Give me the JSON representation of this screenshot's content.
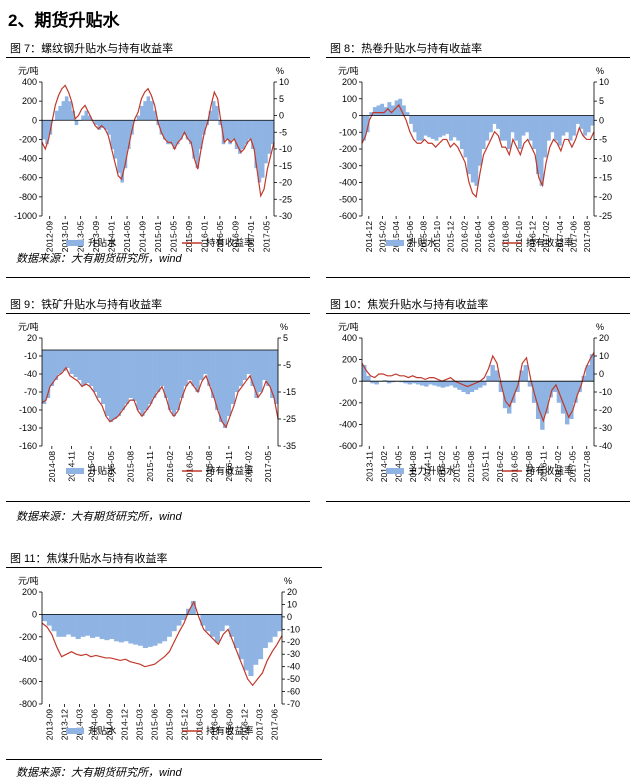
{
  "section_title": "2、期货升贴水",
  "source_note": "数据来源：大有期货研究所，wind",
  "chart_data": [
    {
      "type": "bar+line",
      "title": "图 7：螺纹钢升贴水与持有收益率",
      "left_unit": "元/吨",
      "right_unit": "%",
      "left_ylim": [
        -1000,
        400
      ],
      "left_ticks": [
        400,
        200,
        0,
        -200,
        -400,
        -600,
        -800,
        -1000
      ],
      "right_ylim": [
        -30,
        10
      ],
      "right_ticks": [
        10,
        5,
        0,
        -5,
        -10,
        -15,
        -20,
        -25,
        -30
      ],
      "x_ticks": [
        "2012-09",
        "2013-01",
        "2013-05",
        "2013-09",
        "2014-01",
        "2014-05",
        "2014-09",
        "2015-01",
        "2015-05",
        "2015-09",
        "2016-01",
        "2016-05",
        "2016-09",
        "2017-01",
        "2017-05"
      ],
      "grid": false,
      "legend_position": "bottom",
      "series": [
        {
          "name": "升贴水",
          "kind": "bar",
          "axis": "left",
          "color": "#8fb4e3",
          "values": [
            -200,
            -250,
            -150,
            0,
            100,
            150,
            200,
            250,
            200,
            100,
            -50,
            0,
            50,
            100,
            50,
            0,
            -50,
            -100,
            -80,
            -100,
            -150,
            -300,
            -400,
            -550,
            -650,
            -500,
            -300,
            -150,
            0,
            50,
            150,
            200,
            250,
            200,
            100,
            -50,
            -150,
            -200,
            -250,
            -250,
            -300,
            -250,
            -200,
            -150,
            -200,
            -250,
            -400,
            -500,
            -300,
            -150,
            -50,
            100,
            200,
            150,
            -50,
            -250,
            -200,
            -250,
            -200,
            -300,
            -350,
            -300,
            -250,
            -200,
            -300,
            -500,
            -650,
            -600,
            -450,
            -350,
            -250
          ]
        },
        {
          "name": "持有收益率",
          "kind": "line",
          "axis": "right",
          "color": "#c0392b",
          "values": [
            -8,
            -10,
            -7,
            -2,
            3,
            6,
            8,
            9,
            7,
            4,
            -1,
            0,
            2,
            3,
            1,
            -1,
            -3,
            -4,
            -3,
            -4,
            -6,
            -10,
            -14,
            -18,
            -19,
            -15,
            -10,
            -5,
            -1,
            1,
            5,
            7,
            8,
            6,
            3,
            -2,
            -5,
            -7,
            -8,
            -8,
            -10,
            -8,
            -7,
            -5,
            -7,
            -8,
            -13,
            -16,
            -10,
            -5,
            -2,
            3,
            7,
            5,
            -2,
            -8,
            -7,
            -8,
            -7,
            -9,
            -11,
            -10,
            -8,
            -7,
            -10,
            -17,
            -24,
            -22,
            -16,
            -12,
            -8
          ]
        }
      ]
    },
    {
      "type": "bar+line",
      "title": "图 8：热卷升贴水与持有收益率",
      "left_unit": "元/吨",
      "right_unit": "%",
      "left_ylim": [
        -600,
        200
      ],
      "left_ticks": [
        200,
        100,
        0,
        -100,
        -200,
        -300,
        -400,
        -500,
        -600
      ],
      "right_ylim": [
        -25,
        10
      ],
      "right_ticks": [
        10,
        5,
        0,
        -5,
        -10,
        -15,
        -20,
        -25
      ],
      "x_ticks": [
        "2014-12",
        "2015-02",
        "2015-04",
        "2015-06",
        "2015-08",
        "2015-10",
        "2015-12",
        "2016-02",
        "2016-04",
        "2016-06",
        "2016-08",
        "2016-10",
        "2016-12",
        "2017-02",
        "2017-04",
        "2017-06",
        "2017-08"
      ],
      "grid": false,
      "legend_position": "bottom",
      "series": [
        {
          "name": "升贴水",
          "kind": "bar",
          "axis": "left",
          "color": "#8fb4e3",
          "values": [
            -150,
            -100,
            20,
            50,
            60,
            70,
            50,
            80,
            60,
            90,
            100,
            60,
            20,
            -50,
            -100,
            -150,
            -150,
            -120,
            -130,
            -140,
            -150,
            -130,
            -120,
            -110,
            -150,
            -130,
            -150,
            -200,
            -250,
            -350,
            -400,
            -420,
            -300,
            -200,
            -150,
            -100,
            -50,
            -80,
            -150,
            -150,
            -200,
            -100,
            -150,
            -200,
            -120,
            -100,
            -150,
            -200,
            -350,
            -420,
            -250,
            -150,
            -100,
            -150,
            -180,
            -120,
            -100,
            -150,
            -120,
            -50,
            -80,
            -120,
            -100,
            -60
          ]
        },
        {
          "name": "持有收益率",
          "kind": "line",
          "axis": "right",
          "color": "#c0392b",
          "values": [
            -6,
            -4,
            0,
            2,
            2,
            2,
            2,
            3,
            2,
            3,
            4,
            2,
            0,
            -3,
            -5,
            -6,
            -6,
            -5,
            -6,
            -6,
            -7,
            -6,
            -5,
            -5,
            -7,
            -6,
            -7,
            -9,
            -11,
            -16,
            -19,
            -20,
            -14,
            -9,
            -7,
            -5,
            -3,
            -4,
            -7,
            -7,
            -9,
            -5,
            -7,
            -9,
            -6,
            -5,
            -7,
            -9,
            -15,
            -17,
            -11,
            -7,
            -5,
            -6,
            -8,
            -5,
            -5,
            -7,
            -5,
            -2,
            -4,
            -5,
            -5,
            -3
          ]
        }
      ]
    },
    {
      "type": "bar+line",
      "title": "图 9：铁矿升贴水与持有收益率",
      "left_unit": "元/吨",
      "right_unit": "%",
      "left_ylim": [
        -160,
        20
      ],
      "left_ticks": [
        20,
        -10,
        -40,
        -70,
        -100,
        -130,
        -160
      ],
      "right_ylim": [
        -35,
        5
      ],
      "right_ticks": [
        5,
        -5,
        -15,
        -25,
        -35
      ],
      "x_ticks": [
        "2014-08",
        "2014-11",
        "2015-02",
        "2015-05",
        "2015-08",
        "2015-11",
        "2016-02",
        "2016-05",
        "2016-08",
        "2016-11",
        "2017-02",
        "2017-05"
      ],
      "grid": false,
      "legend_position": "bottom",
      "series": [
        {
          "name": "升贴水",
          "kind": "bar",
          "axis": "left",
          "color": "#8fb4e3",
          "values": [
            -90,
            -80,
            -60,
            -50,
            -40,
            -35,
            -30,
            -40,
            -45,
            -50,
            -60,
            -55,
            -60,
            -70,
            -80,
            -90,
            -110,
            -120,
            -115,
            -110,
            -100,
            -90,
            -80,
            -85,
            -100,
            -110,
            -100,
            -90,
            -80,
            -70,
            -60,
            -80,
            -100,
            -110,
            -100,
            -80,
            -60,
            -50,
            -60,
            -70,
            -50,
            -40,
            -60,
            -80,
            -100,
            -120,
            -130,
            -110,
            -90,
            -70,
            -60,
            -50,
            -40,
            -60,
            -80,
            -70,
            -50,
            -60,
            -80,
            -90
          ]
        },
        {
          "name": "持有收益率",
          "kind": "line",
          "axis": "right",
          "color": "#c0392b",
          "values": [
            -19,
            -18,
            -13,
            -11,
            -9,
            -8,
            -6,
            -9,
            -10,
            -11,
            -13,
            -12,
            -13,
            -15,
            -18,
            -20,
            -24,
            -26,
            -25,
            -24,
            -22,
            -20,
            -18,
            -18,
            -22,
            -24,
            -22,
            -20,
            -17,
            -15,
            -13,
            -17,
            -22,
            -24,
            -22,
            -17,
            -13,
            -11,
            -13,
            -15,
            -11,
            -9,
            -13,
            -17,
            -22,
            -26,
            -28,
            -24,
            -20,
            -15,
            -13,
            -11,
            -9,
            -13,
            -17,
            -15,
            -11,
            -13,
            -17,
            -25
          ]
        }
      ]
    },
    {
      "type": "bar+line",
      "title": "图 10：焦炭升贴水与持有收益率",
      "left_unit": "元/吨",
      "right_unit": "%",
      "left_ylim": [
        -600,
        400
      ],
      "left_ticks": [
        400,
        200,
        0,
        -200,
        -400,
        -600
      ],
      "right_ylim": [
        -40,
        20
      ],
      "right_ticks": [
        20,
        10,
        0,
        -10,
        -20,
        -30,
        -40
      ],
      "x_ticks": [
        "2013-11",
        "2014-02",
        "2014-05",
        "2014-08",
        "2014-11",
        "2015-02",
        "2015-05",
        "2015-08",
        "2015-11",
        "2016-02",
        "2016-05",
        "2016-08",
        "2016-11",
        "2017-02",
        "2017-05",
        "2017-08"
      ],
      "grid": false,
      "legend_position": "bottom",
      "series": [
        {
          "name": "主力升贴水",
          "kind": "bar",
          "axis": "left",
          "color": "#8fb4e3",
          "values": [
            150,
            50,
            -20,
            -30,
            0,
            10,
            -20,
            -10,
            0,
            -10,
            -20,
            -30,
            -20,
            -30,
            -40,
            -50,
            -30,
            -40,
            -50,
            -60,
            -50,
            -40,
            -60,
            -80,
            -100,
            -120,
            -100,
            -80,
            -60,
            -40,
            50,
            150,
            100,
            -100,
            -250,
            -300,
            -200,
            -100,
            100,
            150,
            -50,
            -200,
            -350,
            -450,
            -300,
            -150,
            -100,
            -200,
            -300,
            -400,
            -350,
            -200,
            -100,
            50,
            150,
            250
          ]
        },
        {
          "name": "持有收益率",
          "kind": "line",
          "axis": "right",
          "color": "#c0392b",
          "values": [
            6,
            2,
            -1,
            -2,
            0,
            0,
            -1,
            -1,
            0,
            -1,
            -1,
            -2,
            -1,
            -2,
            -2,
            -3,
            -2,
            -2,
            -3,
            -4,
            -3,
            -2,
            -4,
            -5,
            -6,
            -7,
            -6,
            -5,
            -4,
            -2,
            3,
            10,
            6,
            -6,
            -15,
            -18,
            -12,
            -6,
            6,
            9,
            -3,
            -12,
            -20,
            -26,
            -18,
            -9,
            -6,
            -12,
            -18,
            -24,
            -20,
            -12,
            -6,
            3,
            8,
            12
          ]
        }
      ]
    },
    {
      "type": "bar+line",
      "title": "图 11：焦煤升贴水与持有收益率",
      "left_unit": "元/吨",
      "right_unit": "%",
      "left_ylim": [
        -800,
        200
      ],
      "left_ticks": [
        200,
        0,
        -200,
        -400,
        -600,
        -800
      ],
      "right_ylim": [
        -70,
        20
      ],
      "right_ticks": [
        20,
        10,
        0,
        -10,
        -20,
        -30,
        -40,
        -50,
        -60,
        -70
      ],
      "x_ticks": [
        "2013-09",
        "2013-12",
        "2014-03",
        "2014-06",
        "2014-09",
        "2014-12",
        "2015-03",
        "2015-06",
        "2015-09",
        "2015-12",
        "2016-03",
        "2016-06",
        "2016-09",
        "2016-12",
        "2017-03",
        "2017-06"
      ],
      "grid": false,
      "legend_position": "bottom",
      "series": [
        {
          "name": "升贴水",
          "kind": "bar",
          "axis": "left",
          "color": "#8fb4e3",
          "values": [
            -60,
            -100,
            -150,
            -200,
            -200,
            -180,
            -200,
            -220,
            -200,
            -190,
            -210,
            -200,
            -220,
            -230,
            -220,
            -240,
            -250,
            -240,
            -260,
            -270,
            -280,
            -300,
            -290,
            -280,
            -260,
            -240,
            -200,
            -150,
            -100,
            -50,
            50,
            120,
            0,
            -100,
            -150,
            -200,
            -250,
            -150,
            -100,
            -200,
            -300,
            -400,
            -500,
            -550,
            -450,
            -400,
            -300,
            -250,
            -200,
            -150
          ]
        },
        {
          "name": "持有收益率",
          "kind": "line",
          "axis": "right",
          "color": "#c0392b",
          "values": [
            -5,
            -8,
            -14,
            -24,
            -32,
            -30,
            -28,
            -30,
            -31,
            -30,
            -32,
            -31,
            -32,
            -33,
            -33,
            -34,
            -35,
            -34,
            -36,
            -37,
            -38,
            -40,
            -39,
            -38,
            -35,
            -32,
            -28,
            -20,
            -12,
            -5,
            5,
            12,
            0,
            -10,
            -14,
            -18,
            -22,
            -14,
            -10,
            -20,
            -30,
            -40,
            -50,
            -55,
            -50,
            -45,
            -35,
            -28,
            -22,
            -15
          ]
        }
      ]
    }
  ]
}
